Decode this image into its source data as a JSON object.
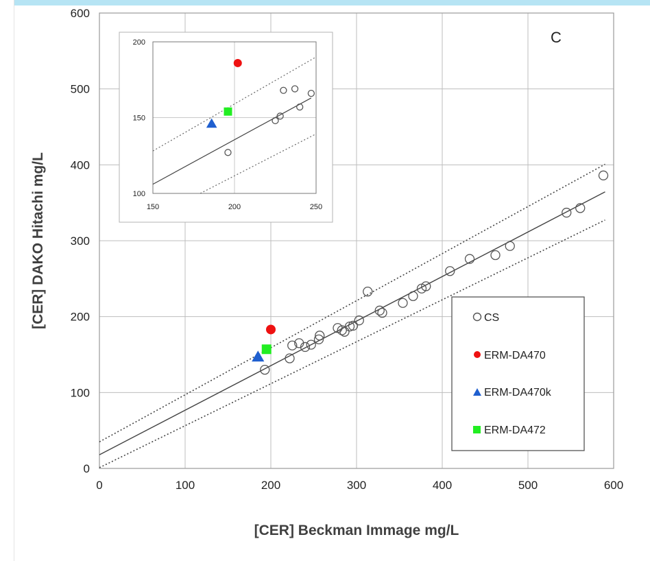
{
  "chart_data": {
    "type": "scatter",
    "panel_label": "C",
    "xlabel": "[CER] Beckman Immage mg/L",
    "ylabel": "[CER] DAKO Hitachi mg/L",
    "xlim": [
      0,
      600
    ],
    "ylim": [
      0,
      600
    ],
    "x_ticks": [
      0,
      100,
      200,
      300,
      400,
      500,
      600
    ],
    "y_ticks": [
      0,
      100,
      200,
      300,
      400,
      500,
      600
    ],
    "grid": true,
    "legend_position": "lower-right",
    "series": [
      {
        "name": "CS",
        "marker": "open-circle",
        "color": "#444444",
        "points": [
          [
            193,
            130
          ],
          [
            222,
            145
          ],
          [
            225,
            162
          ],
          [
            233,
            165
          ],
          [
            240,
            160
          ],
          [
            247,
            163
          ],
          [
            256,
            170
          ],
          [
            257,
            175
          ],
          [
            278,
            185
          ],
          [
            283,
            182
          ],
          [
            286,
            180
          ],
          [
            292,
            187
          ],
          [
            296,
            188
          ],
          [
            303,
            195
          ],
          [
            313,
            233
          ],
          [
            327,
            208
          ],
          [
            330,
            205
          ],
          [
            354,
            218
          ],
          [
            366,
            227
          ],
          [
            376,
            237
          ],
          [
            381,
            240
          ],
          [
            409,
            260
          ],
          [
            432,
            276
          ],
          [
            462,
            281
          ],
          [
            479,
            293
          ],
          [
            545,
            337
          ],
          [
            561,
            343
          ],
          [
            588,
            386
          ]
        ]
      },
      {
        "name": "ERM-DA470",
        "marker": "filled-circle",
        "color": "#ee1111",
        "points": [
          [
            200,
            183
          ]
        ]
      },
      {
        "name": "ERM-DA470k",
        "marker": "filled-triangle",
        "color": "#1f5fcf",
        "points": [
          [
            185,
            147
          ]
        ]
      },
      {
        "name": "ERM-DA472",
        "marker": "filled-square",
        "color": "#22ee22",
        "points": [
          [
            195,
            157
          ]
        ]
      }
    ],
    "regression": {
      "intercept": 18,
      "slope": 0.587
    },
    "prediction_bands": [
      {
        "intercept": 35,
        "slope": 0.62
      },
      {
        "intercept": 1,
        "slope": 0.553
      }
    ],
    "inset": {
      "xlim": [
        150,
        250
      ],
      "ylim": [
        100,
        200
      ],
      "x_ticks": [
        150,
        200,
        250
      ],
      "y_ticks": [
        100,
        150,
        200
      ],
      "cs_points": [
        [
          196,
          127
        ],
        [
          225,
          148
        ],
        [
          228,
          151
        ],
        [
          230,
          168
        ],
        [
          237,
          169
        ],
        [
          240,
          157
        ],
        [
          247,
          166
        ]
      ],
      "specials": [
        {
          "series": "ERM-DA470",
          "x": 202,
          "y": 186
        },
        {
          "series": "ERM-DA470k",
          "x": 186,
          "y": 146
        },
        {
          "series": "ERM-DA472",
          "x": 196,
          "y": 154
        }
      ]
    }
  }
}
